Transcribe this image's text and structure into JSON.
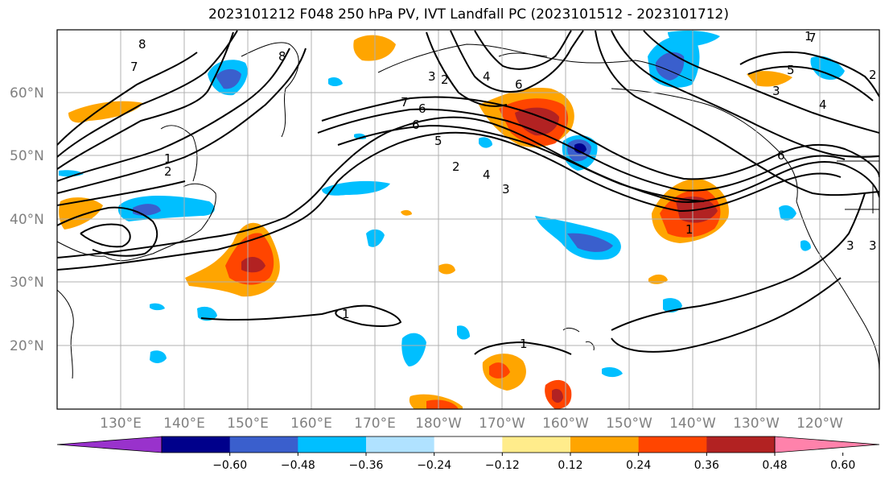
{
  "title": "2023101212 F048 250 hPa PV, IVT Landfall PC (2023101512 - 2023101712)",
  "map": {
    "projection": "equirectangular",
    "lat_range": [
      10,
      70
    ],
    "lon_labels": [
      "130°E",
      "140°E",
      "150°E",
      "160°E",
      "170°E",
      "180°W",
      "170°W",
      "160°W",
      "150°W",
      "140°W",
      "130°W",
      "120°W"
    ],
    "lat_labels": [
      "20°N",
      "30°N",
      "40°N",
      "50°N",
      "60°N"
    ],
    "grid": true
  },
  "colorbar": {
    "orientation": "horizontal",
    "extend": "both",
    "ticks": [
      "−0.60",
      "−0.48",
      "−0.36",
      "−0.24",
      "−0.12",
      "0.12",
      "0.24",
      "0.36",
      "0.48",
      "0.60"
    ],
    "colors": [
      "#9932CC",
      "#00008B",
      "#3A5FCD",
      "#00BFFF",
      "#B0E2FF",
      "#FFFFFF",
      "#FFEC8B",
      "#FFA500",
      "#FF4500",
      "#B22222",
      "#FF82AB"
    ]
  },
  "contour_labels": [
    "8",
    "7",
    "1",
    "2",
    "8",
    "3",
    "2",
    "4",
    "6",
    "7",
    "6",
    "6",
    "5",
    "2",
    "4",
    "3",
    "1",
    "1",
    "1",
    "1",
    "7",
    "5",
    "3",
    "4",
    "6",
    "3",
    "3",
    "2"
  ]
}
